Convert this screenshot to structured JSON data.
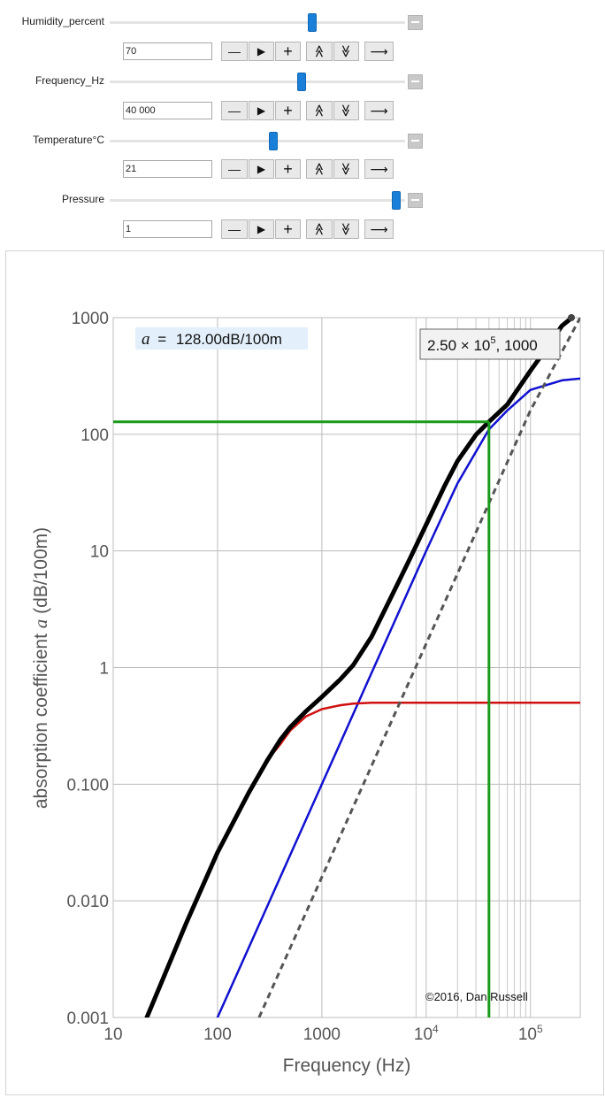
{
  "controls": [
    {
      "label": "Humidity_percent",
      "value": "70",
      "fraction": 0.69
    },
    {
      "label": "Frequency_Hz",
      "value": "40 000",
      "fraction": 0.655
    },
    {
      "label": "Temperature°C",
      "value": "21",
      "fraction": 0.555
    },
    {
      "label": "Pressure",
      "value": "1",
      "fraction": 0.985
    }
  ],
  "buttons": {
    "decrement": "—",
    "play": "▶",
    "increment": "+",
    "faster": "≪",
    "slower": "≫",
    "direction": "⟶"
  },
  "chart_data": {
    "type": "line",
    "xlabel": "Frequency (Hz)",
    "ylabel": "absorption coefficient",
    "ylabel_symbol": "a",
    "ylabel_unit": "(dB/100m)",
    "xscale": "log",
    "yscale": "log",
    "xlim": [
      10,
      300000
    ],
    "ylim": [
      0.001,
      1000
    ],
    "x_ticks": [
      {
        "value": 10,
        "label": "10"
      },
      {
        "value": 100,
        "label": "100"
      },
      {
        "value": 1000,
        "label": "1000"
      },
      {
        "value": 10000,
        "label": "10",
        "exp": "4"
      },
      {
        "value": 100000,
        "label": "10",
        "exp": "5"
      }
    ],
    "y_ticks": [
      {
        "value": 0.001,
        "label": "0.001"
      },
      {
        "value": 0.01,
        "label": "0.010"
      },
      {
        "value": 0.1,
        "label": "0.100"
      },
      {
        "value": 1,
        "label": "1"
      },
      {
        "value": 10,
        "label": "10"
      },
      {
        "value": 100,
        "label": "100"
      },
      {
        "value": 1000,
        "label": "1000"
      }
    ],
    "minor_x_gridlines": [
      8000,
      20000,
      30000,
      40000,
      50000,
      60000,
      70000,
      80000,
      90000
    ],
    "series": [
      {
        "color": "#000000",
        "style": "solid-thick",
        "x": [
          21,
          50,
          100,
          200,
          300,
          400,
          500,
          700,
          1000,
          1500,
          2000,
          3000,
          5000,
          7000,
          10000,
          15000,
          20000,
          30000,
          40000,
          60000,
          100000,
          150000,
          200000,
          250000
        ],
        "y": [
          0.001,
          0.0064,
          0.026,
          0.085,
          0.16,
          0.24,
          0.31,
          0.42,
          0.56,
          0.79,
          1.05,
          1.84,
          4.65,
          8.6,
          16.8,
          36,
          59,
          99,
          128,
          180,
          350,
          580,
          850,
          1000
        ]
      },
      {
        "color": "#d01010",
        "style": "solid",
        "x": [
          100,
          200,
          300,
          400,
          500,
          700,
          1000,
          1500,
          2000,
          3000,
          5000,
          10000,
          50000,
          300000
        ],
        "y": [
          0.026,
          0.085,
          0.16,
          0.22,
          0.29,
          0.38,
          0.44,
          0.475,
          0.49,
          0.5,
          0.5,
          0.5,
          0.5,
          0.5
        ]
      },
      {
        "color": "#1010d0",
        "style": "solid",
        "x": [
          100,
          300,
          1000,
          3000,
          10000,
          20000,
          40000,
          60000,
          100000,
          200000,
          300000
        ],
        "y": [
          0.001,
          0.009,
          0.1,
          0.9,
          10,
          38,
          110,
          160,
          240,
          290,
          300
        ]
      },
      {
        "color": "#555555",
        "style": "dashed",
        "x": [
          250,
          1000,
          10000,
          100000,
          300000
        ],
        "y": [
          0.001,
          0.016,
          1.6,
          160,
          1000
        ]
      }
    ],
    "marker": {
      "x": 40000,
      "y": 128,
      "color": "#1a9a1a"
    },
    "readout": {
      "symbol": "a",
      "eq": "=",
      "text": "128.00dB/100m"
    },
    "coord_label": {
      "mantissa": "2.50 × 10",
      "exp": "5",
      "suffix": ", 1000"
    },
    "copyright": "©2016, Dan Russell"
  }
}
